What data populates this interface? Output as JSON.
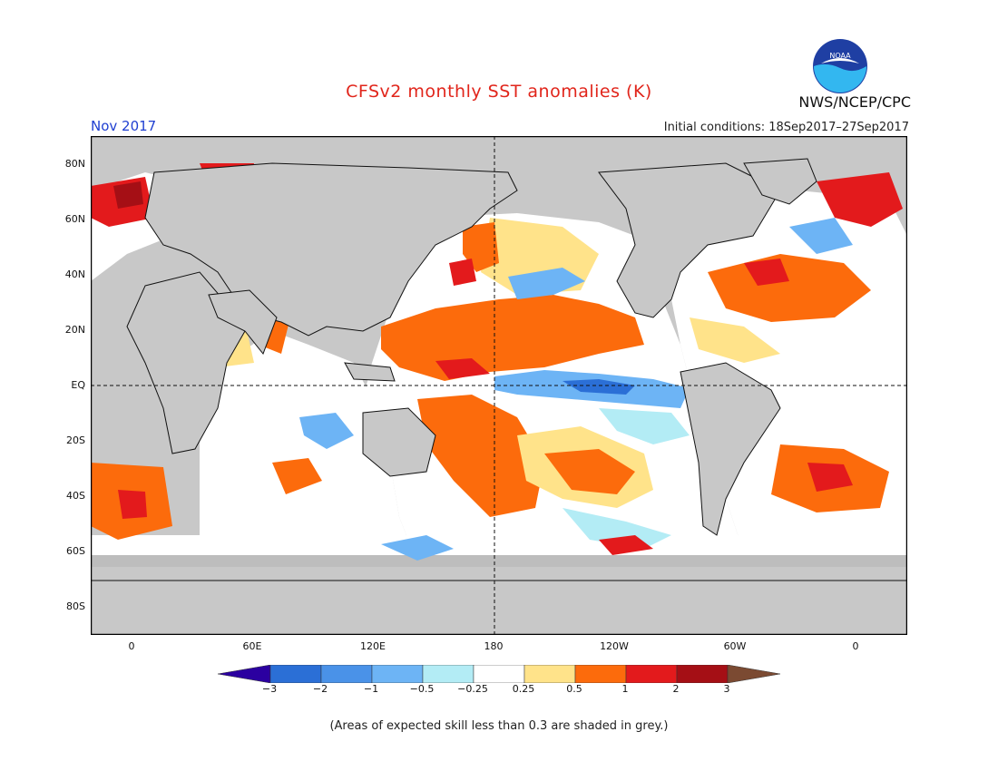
{
  "header": {
    "title": "CFSv2 monthly SST anomalies (K)",
    "month": "Nov 2017",
    "initial_conditions": "Initial conditions: 18Sep2017–27Sep2017",
    "organization": "NWS/NCEP/CPC",
    "logo_text": "NOAA"
  },
  "map": {
    "variable": "monthly SST anomalies",
    "units": "K",
    "projection": "cylindrical equidistant",
    "lon_range": [
      -20,
      380
    ],
    "lat_range": [
      -90,
      90
    ],
    "center_line_lon": 180,
    "equator_dashed": true,
    "land_color": "#c8c8c8",
    "low_skill_color": "#bdbdbd",
    "lat_labels": [
      "80N",
      "60N",
      "40N",
      "20N",
      "EQ",
      "20S",
      "40S",
      "60S",
      "80S"
    ],
    "lon_labels": [
      "0",
      "60E",
      "120E",
      "180",
      "120W",
      "60W",
      "0"
    ]
  },
  "colorbar": {
    "tick_labels": [
      "−3",
      "−2",
      "−1",
      "−0.5",
      "−0.25",
      "0.25",
      "0.5",
      "1",
      "2",
      "3"
    ],
    "colors": [
      "#2b00a0",
      "#2b6fd6",
      "#4a92e8",
      "#6db4f5",
      "#b3ecf5",
      "#ffffff",
      "#ffe38a",
      "#fc6b0c",
      "#e31a1c",
      "#a50f15",
      "#7b4a32"
    ]
  },
  "footer": {
    "note": "(Areas of expected skill less than 0.3 are shaded in grey.)"
  }
}
